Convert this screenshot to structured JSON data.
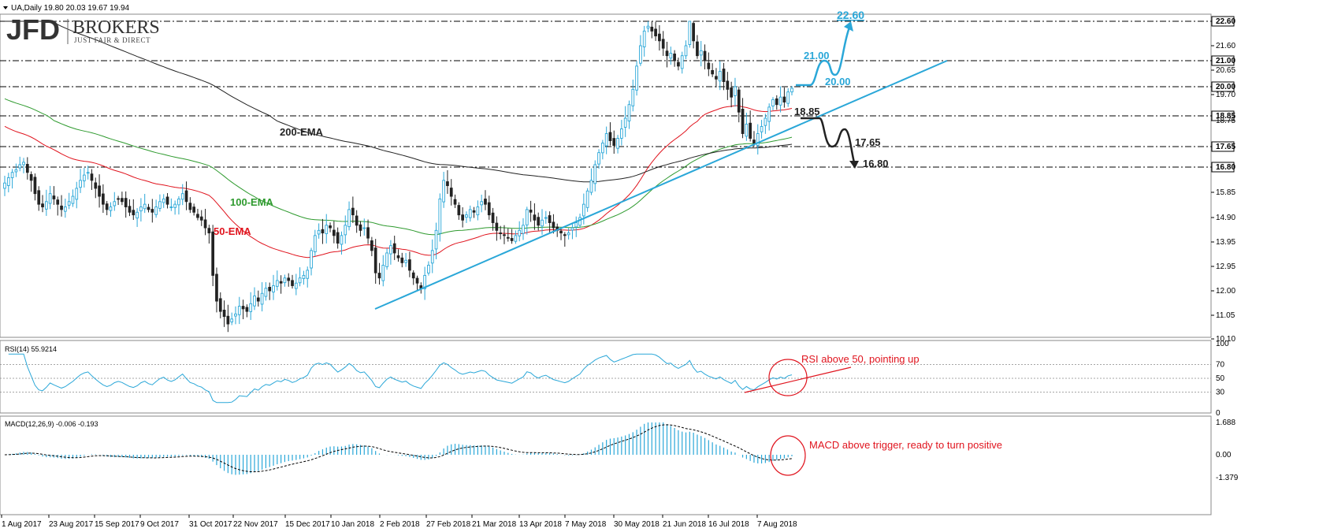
{
  "header": {
    "symbol_line": "UA,Daily  19.80 20.03 19.67 19.94",
    "logo_main": "JFD",
    "logo_brand": "BROKERS",
    "logo_tag": "JUST FAIR & DIRECT"
  },
  "colors": {
    "bull": "#2aa7d8",
    "bear": "#222222",
    "ema50": "#e0141e",
    "ema100": "#2e9a2e",
    "ema200": "#222222",
    "trend": "#2aa7d8",
    "annotation": "#e0141e"
  },
  "chart_data": [
    {
      "type": "candlestick",
      "title": "UA,Daily  19.80 20.03 19.67 19.94",
      "symbol": "UA",
      "timeframe": "Daily",
      "last_ohlc": {
        "open": 19.8,
        "high": 20.03,
        "low": 19.67,
        "close": 19.94
      },
      "y_ticks": [
        22.6,
        21.6,
        21.0,
        20.65,
        20.0,
        19.7,
        18.85,
        18.75,
        17.65,
        16.8,
        15.85,
        14.9,
        13.95,
        12.95,
        12.0,
        11.05,
        10.1
      ],
      "x_ticks": [
        "1 Aug 2017",
        "23 Aug 2017",
        "15 Sep 2017",
        "9 Oct 2017",
        "31 Oct 2017",
        "22 Nov 2017",
        "15 Dec 2017",
        "10 Jan 2018",
        "2 Feb 2018",
        "27 Feb 2018",
        "21 Mar 2018",
        "13 Apr 2018",
        "7 May 2018",
        "30 May 2018",
        "21 Jun 2018",
        "16 Jul 2018",
        "7 Aug 2018"
      ],
      "horizontal_levels": [
        22.6,
        21.0,
        20.0,
        18.85,
        17.65,
        16.8
      ],
      "close_series": [
        16.2,
        16.4,
        16.6,
        16.7,
        16.9,
        17.0,
        16.6,
        16.3,
        15.8,
        15.4,
        15.3,
        15.5,
        15.8,
        15.6,
        15.4,
        15.2,
        15.3,
        15.5,
        15.7,
        16.0,
        16.3,
        16.5,
        16.6,
        16.3,
        16.0,
        15.7,
        15.4,
        15.2,
        15.3,
        15.5,
        15.6,
        15.5,
        15.3,
        15.1,
        15.0,
        15.1,
        15.3,
        15.4,
        15.2,
        15.1,
        15.3,
        15.5,
        15.6,
        15.4,
        15.3,
        15.4,
        15.6,
        15.8,
        15.5,
        15.2,
        15.1,
        14.9,
        14.8,
        14.5,
        14.3,
        12.6,
        11.6,
        11.2,
        11.0,
        10.7,
        10.9,
        11.1,
        11.4,
        11.3,
        11.2,
        11.5,
        11.8,
        11.6,
        11.9,
        12.1,
        12.0,
        12.2,
        12.4,
        12.3,
        12.5,
        12.4,
        12.2,
        12.3,
        12.5,
        12.6,
        12.8,
        13.6,
        14.2,
        14.4,
        14.3,
        14.6,
        14.5,
        14.2,
        13.9,
        14.2,
        14.6,
        15.2,
        15.0,
        14.6,
        14.4,
        14.5,
        14.1,
        13.6,
        12.7,
        12.5,
        13.0,
        13.5,
        13.8,
        13.5,
        13.3,
        13.1,
        13.2,
        12.8,
        12.5,
        12.3,
        12.1,
        12.6,
        13.0,
        13.6,
        14.4,
        15.6,
        16.3,
        16.1,
        15.7,
        15.4,
        15.0,
        14.8,
        15.0,
        15.2,
        15.1,
        15.3,
        15.5,
        15.4,
        15.0,
        14.7,
        14.4,
        14.3,
        14.2,
        14.1,
        14.0,
        14.2,
        14.4,
        14.6,
        15.2,
        15.1,
        14.8,
        14.6,
        14.8,
        14.9,
        14.7,
        14.5,
        14.4,
        14.3,
        14.2,
        14.3,
        14.5,
        14.7,
        14.9,
        15.4,
        15.9,
        16.3,
        16.9,
        17.4,
        17.8,
        18.2,
        17.9,
        17.7,
        18.0,
        18.4,
        18.8,
        19.3,
        19.9,
        20.8,
        21.6,
        22.2,
        22.4,
        22.2,
        22.0,
        21.8,
        21.5,
        21.2,
        21.3,
        21.0,
        20.8,
        21.2,
        21.6,
        22.6,
        21.8,
        21.2,
        21.4,
        21.0,
        20.7,
        20.5,
        20.3,
        20.6,
        20.2,
        19.9,
        19.6,
        20.0,
        19.0,
        18.2,
        18.6,
        18.0,
        17.8,
        18.2,
        18.5,
        18.8,
        19.2,
        19.5,
        19.3,
        19.6,
        19.4,
        19.8,
        19.94
      ],
      "series": [
        {
          "name": "50-EMA"
        },
        {
          "name": "100-EMA"
        },
        {
          "name": "200-EMA"
        }
      ],
      "projections": {
        "bullish": [
          20.0,
          21.0,
          20.0,
          22.6
        ],
        "bearish": [
          18.85,
          17.65,
          16.8
        ]
      },
      "annotations": [
        "18.85",
        "22.60",
        "21.00",
        "20.00",
        "17.65",
        "16.80"
      ]
    },
    {
      "type": "line",
      "title": "RSI(14) 55.9214",
      "name": "RSI(14)",
      "value": 55.9214,
      "y_ticks": [
        100,
        70,
        50,
        30,
        0
      ],
      "annotation": "RSI above 50, pointing up"
    },
    {
      "type": "bar",
      "title": "MACD(12,26,9) -0.006 -0.193",
      "name": "MACD(12,26,9)",
      "values_readout": [
        -0.006,
        -0.193
      ],
      "y_ticks": [
        1.688,
        0.0,
        -1.379
      ],
      "annotation": "MACD above trigger, ready to turn positive"
    }
  ],
  "labels": {
    "ema50": "50-EMA",
    "ema100": "100-EMA",
    "ema200": "200-EMA",
    "p2260": "22.60",
    "p2100": "21.00",
    "p2000": "20.00",
    "p1885": "18.85",
    "p1765": "17.65",
    "p1680": "16.80",
    "rsi_note": "RSI above 50, pointing up",
    "macd_note": "MACD above trigger, ready to turn positive"
  }
}
